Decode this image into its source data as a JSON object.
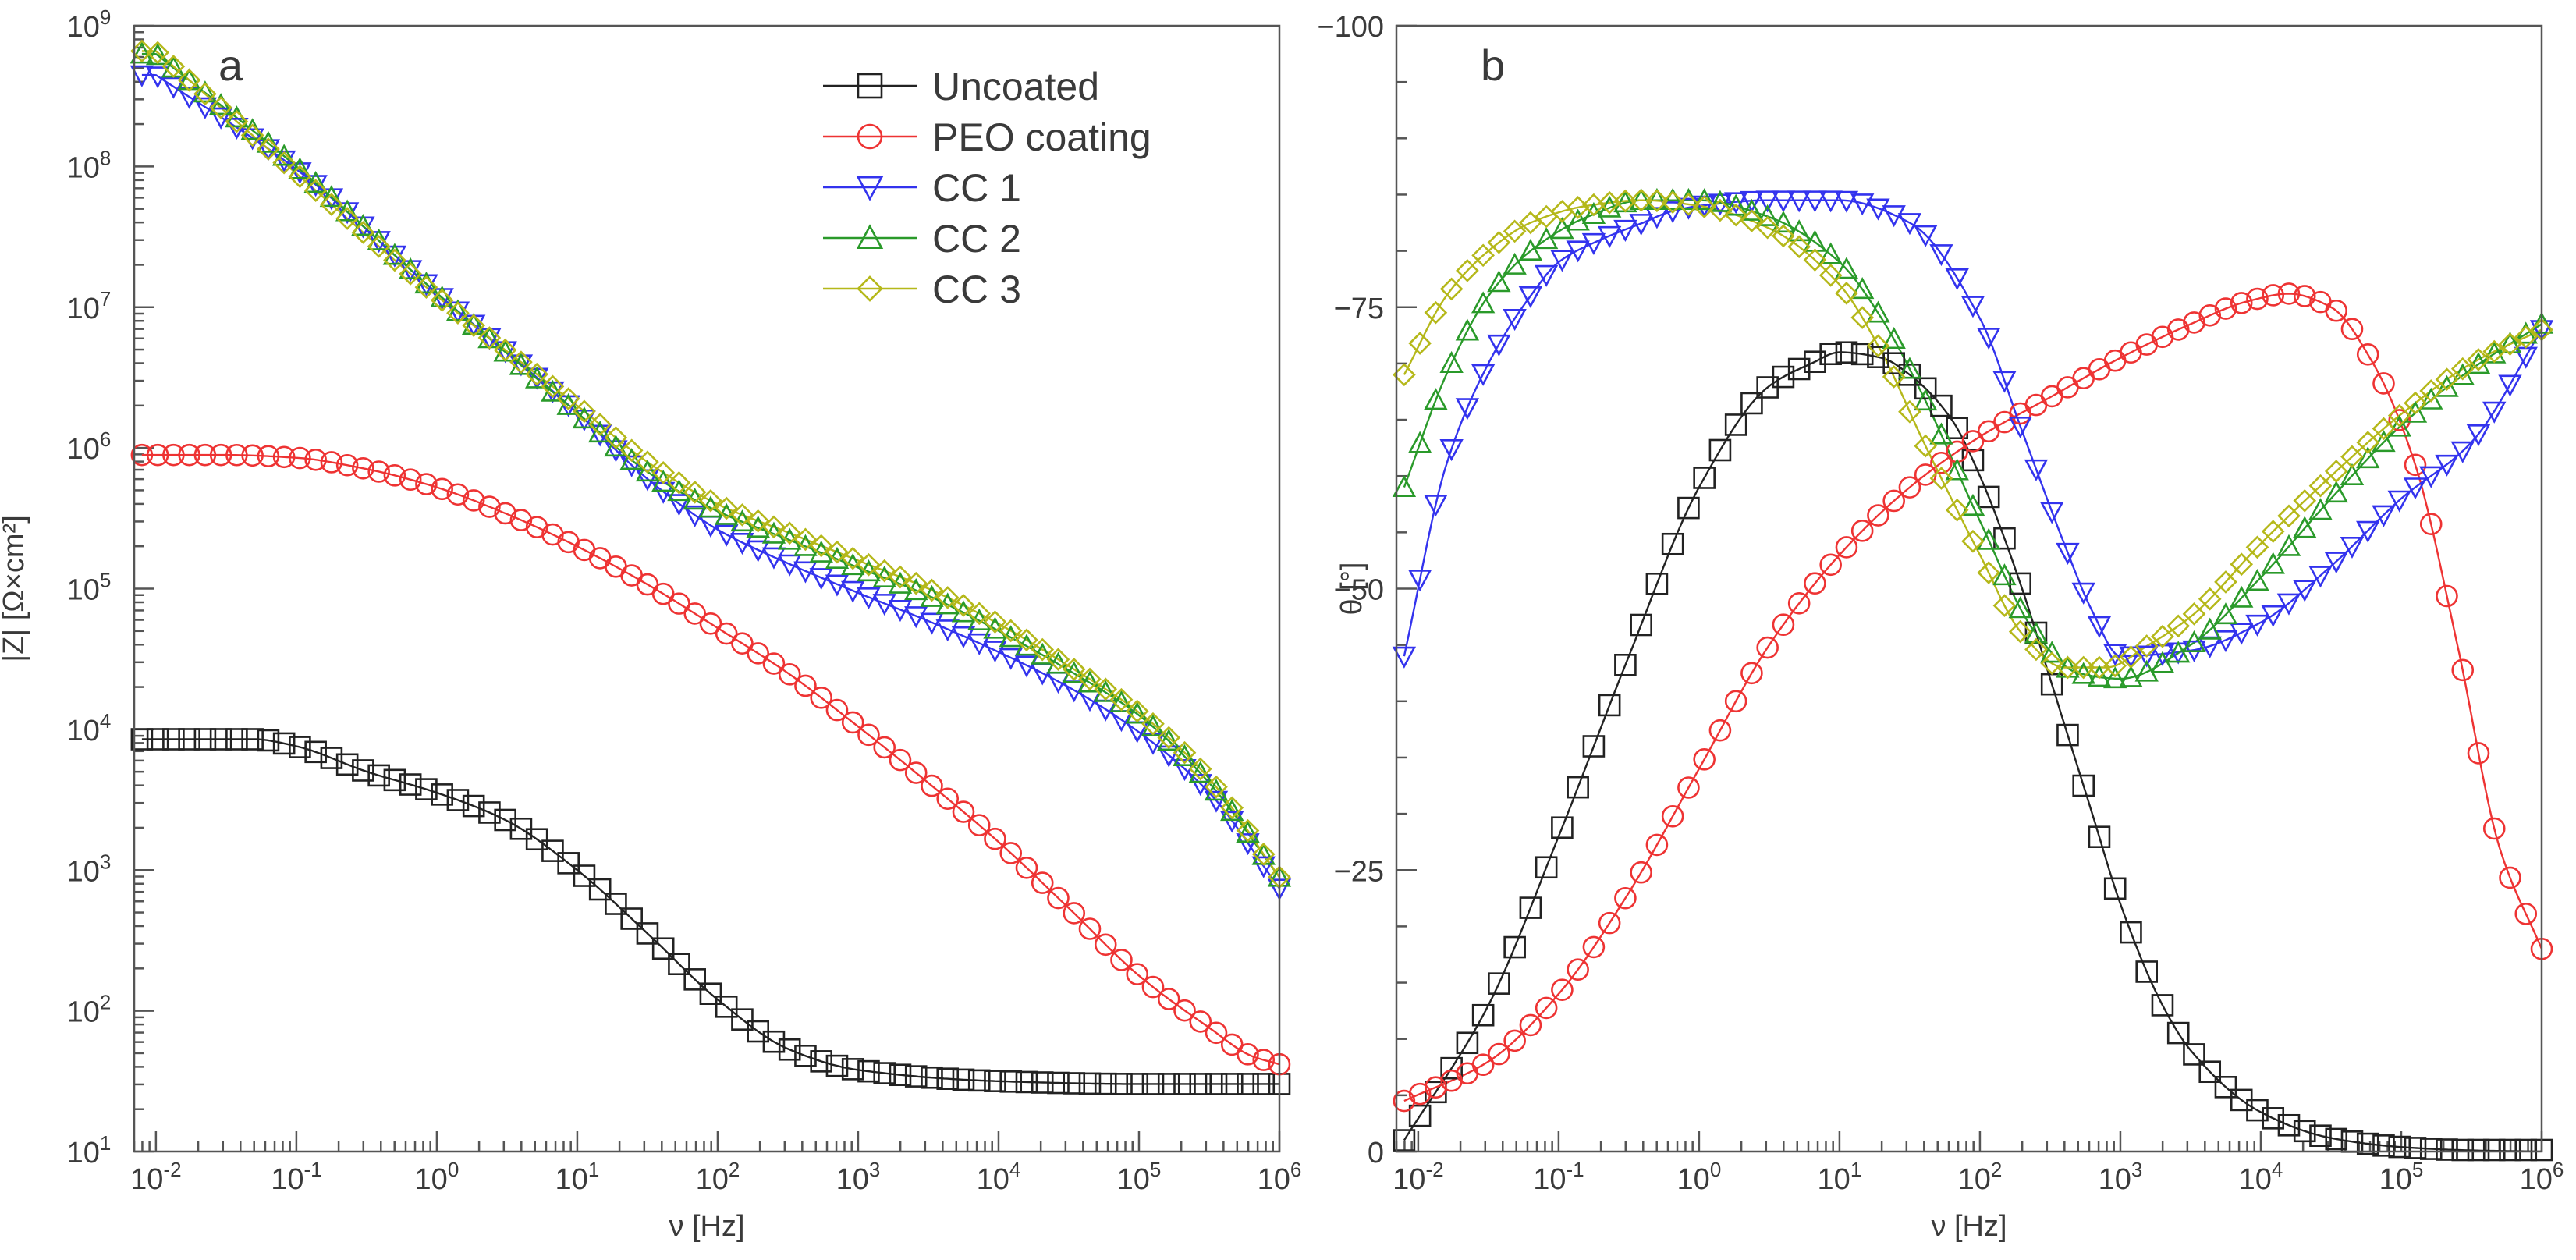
{
  "colors": {
    "uncoated": "#222222",
    "peo": "#ee3333",
    "cc1": "#3333ee",
    "cc2": "#2a9a2a",
    "cc3": "#b5b81a",
    "frame": "#555555"
  },
  "chart_data": [
    {
      "panel": "a",
      "type": "scatter",
      "xscale": "log",
      "yscale": "log",
      "xlabel": "ν [Hz]",
      "ylabel": "|Z| [Ω×cm²]",
      "xlim": [
        0.007,
        1000000
      ],
      "ylim": [
        10,
        1000000000
      ],
      "x_ticks": [
        {
          "base": "10",
          "exp": "-2"
        },
        {
          "base": "10",
          "exp": "-1"
        },
        {
          "base": "10",
          "exp": "0"
        },
        {
          "base": "10",
          "exp": "1"
        },
        {
          "base": "10",
          "exp": "2"
        },
        {
          "base": "10",
          "exp": "3"
        },
        {
          "base": "10",
          "exp": "4"
        },
        {
          "base": "10",
          "exp": "5"
        },
        {
          "base": "10",
          "exp": "6"
        }
      ],
      "y_ticks": [
        {
          "base": "10",
          "exp": "1"
        },
        {
          "base": "10",
          "exp": "2"
        },
        {
          "base": "10",
          "exp": "3"
        },
        {
          "base": "10",
          "exp": "4"
        },
        {
          "base": "10",
          "exp": "5"
        },
        {
          "base": "10",
          "exp": "6"
        },
        {
          "base": "10",
          "exp": "7"
        },
        {
          "base": "10",
          "exp": "8"
        },
        {
          "base": "10",
          "exp": "9"
        }
      ],
      "legend": {
        "position": "top-right",
        "entries": [
          {
            "label": "Uncoated",
            "series": "uncoated",
            "marker": "square"
          },
          {
            "label": "PEO coating",
            "series": "peo",
            "marker": "circle"
          },
          {
            "label": "CC 1",
            "series": "cc1",
            "marker": "triangle-down"
          },
          {
            "label": "CC 2",
            "series": "cc2",
            "marker": "triangle-up"
          },
          {
            "label": "CC 3",
            "series": "cc3",
            "marker": "diamond"
          }
        ]
      },
      "series": [
        {
          "key": "uncoated",
          "name": "Uncoated",
          "marker": "square",
          "x_log": [
            -2,
            -1.3,
            -1,
            -0.5,
            0,
            0.5,
            1,
            1.5,
            2,
            2.5,
            3,
            4,
            5,
            6
          ],
          "y_log": [
            3.93,
            3.93,
            3.88,
            3.7,
            3.55,
            3.35,
            3.0,
            2.55,
            2.08,
            1.73,
            1.58,
            1.5,
            1.48,
            1.48
          ]
        },
        {
          "key": "peo",
          "name": "PEO coating",
          "marker": "circle",
          "x_log": [
            -2,
            -1.5,
            -1,
            -0.5,
            0,
            0.5,
            1,
            1.5,
            2,
            2.5,
            3,
            3.5,
            4,
            4.5,
            5,
            5.5,
            5.8,
            6
          ],
          "y_log": [
            5.95,
            5.95,
            5.93,
            5.85,
            5.72,
            5.53,
            5.3,
            5.03,
            4.72,
            4.4,
            4.02,
            3.62,
            3.2,
            2.73,
            2.25,
            1.88,
            1.68,
            1.62
          ]
        },
        {
          "key": "cc1",
          "name": "CC 1",
          "marker": "triangle-down",
          "x_log": [
            -2,
            -1,
            0,
            1,
            1.5,
            2,
            2.5,
            3,
            3.5,
            4,
            4.5,
            5,
            5.5,
            6
          ],
          "y_log": [
            8.65,
            7.98,
            7.1,
            6.25,
            5.78,
            5.42,
            5.18,
            4.97,
            4.77,
            4.55,
            4.3,
            3.98,
            3.55,
            2.87
          ]
        },
        {
          "key": "cc2",
          "name": "CC 2",
          "marker": "triangle-up",
          "x_log": [
            -2,
            -1,
            0,
            1,
            1.5,
            2,
            2.5,
            3,
            3.5,
            4,
            4.5,
            5,
            5.5,
            6
          ],
          "y_log": [
            8.8,
            8.0,
            7.1,
            6.25,
            5.83,
            5.55,
            5.35,
            5.15,
            4.95,
            4.7,
            4.42,
            4.1,
            3.62,
            2.95
          ]
        },
        {
          "key": "cc3",
          "name": "CC 3",
          "marker": "diamond",
          "x_log": [
            -2,
            -1,
            0,
            1,
            1.5,
            2,
            2.5,
            3,
            3.5,
            4,
            4.5,
            5,
            5.5,
            6
          ],
          "y_log": [
            8.82,
            7.95,
            7.08,
            6.3,
            5.9,
            5.6,
            5.4,
            5.2,
            5.0,
            4.75,
            4.45,
            4.12,
            3.65,
            2.95
          ]
        }
      ]
    },
    {
      "panel": "b",
      "type": "scatter",
      "xscale": "log",
      "yscale": "linear",
      "xlabel": "ν [Hz]",
      "ylabel": "θ [°]",
      "xlim": [
        0.007,
        1000000
      ],
      "ylim": [
        0,
        -100
      ],
      "x_ticks": [
        {
          "base": "10",
          "exp": "-2"
        },
        {
          "base": "10",
          "exp": "-1"
        },
        {
          "base": "10",
          "exp": "0"
        },
        {
          "base": "10",
          "exp": "1"
        },
        {
          "base": "10",
          "exp": "2"
        },
        {
          "base": "10",
          "exp": "3"
        },
        {
          "base": "10",
          "exp": "4"
        },
        {
          "base": "10",
          "exp": "5"
        },
        {
          "base": "10",
          "exp": "6"
        }
      ],
      "y_ticks": [
        "0",
        "−25",
        "−50",
        "−75",
        "−100"
      ],
      "y_tick_values": [
        0,
        -25,
        -50,
        -75,
        -100
      ],
      "series": [
        {
          "key": "uncoated",
          "name": "Uncoated",
          "marker": "square",
          "x_log": [
            -2.1,
            -1.5,
            -1,
            -0.5,
            0,
            0.5,
            0.8,
            1,
            1.3,
            1.5,
            1.8,
            2,
            2.3,
            2.5,
            2.8,
            3,
            3.3,
            3.5,
            4,
            4.5,
            5,
            5.5,
            6
          ],
          "y": [
            -1,
            -13,
            -28,
            -44,
            -59,
            -68,
            -70,
            -71,
            -70.5,
            -69,
            -65,
            -60,
            -50,
            -42,
            -30,
            -22,
            -13,
            -9,
            -3.5,
            -1.2,
            -0.4,
            -0.1,
            0
          ]
        },
        {
          "key": "peo",
          "name": "PEO coating",
          "marker": "circle",
          "x_log": [
            -2.1,
            -1.5,
            -1,
            -0.5,
            0,
            0.5,
            1,
            1.5,
            2,
            2.5,
            3,
            3.5,
            3.9,
            4.2,
            4.5,
            4.8,
            5.1,
            5.4,
            5.7,
            6
          ],
          "y": [
            -4.5,
            -8,
            -14,
            -23,
            -34,
            -45,
            -53,
            -59,
            -63.5,
            -67,
            -70.5,
            -73.5,
            -75.5,
            -76.2,
            -75,
            -70,
            -61,
            -45,
            -27,
            -18
          ]
        },
        {
          "key": "cc1",
          "name": "CC 1",
          "marker": "triangle-down",
          "x_log": [
            -2.1,
            -1.8,
            -1.5,
            -1.2,
            -1,
            -0.7,
            -0.4,
            -0.2,
            0,
            0.5,
            1,
            1.5,
            2,
            2.3,
            2.6,
            2.8,
            3,
            3.5,
            4,
            4.5,
            5,
            5.5,
            6
          ],
          "y": [
            -44,
            -61,
            -70,
            -76,
            -79,
            -81,
            -82.5,
            -83.5,
            -84,
            -84.5,
            -84.5,
            -82.5,
            -74,
            -64,
            -54,
            -48,
            -44,
            -44.5,
            -47,
            -52,
            -58,
            -63,
            -73
          ]
        },
        {
          "key": "cc2",
          "name": "CC 2",
          "marker": "triangle-up",
          "x_log": [
            -2.1,
            -1.8,
            -1.5,
            -1.2,
            -0.8,
            -0.4,
            0,
            0.5,
            1,
            1.3,
            1.6,
            2,
            2.4,
            2.7,
            3,
            3.5,
            4,
            4.5,
            5,
            5.5,
            6
          ],
          "y": [
            -59,
            -69,
            -76,
            -80,
            -83,
            -84.5,
            -84.5,
            -83,
            -79,
            -74,
            -67,
            -56,
            -46,
            -42.5,
            -42,
            -45,
            -51,
            -58,
            -64.5,
            -69.5,
            -73.5
          ]
        },
        {
          "key": "cc3",
          "name": "CC 3",
          "marker": "diamond",
          "x_log": [
            -2.1,
            -1.8,
            -1.5,
            -1.2,
            -0.8,
            -0.4,
            0,
            0.5,
            1,
            1.3,
            1.6,
            2,
            2.3,
            2.6,
            2.9,
            3.2,
            3.5,
            4,
            4.5,
            5,
            5.5,
            6
          ],
          "y": [
            -69,
            -76,
            -80,
            -82.5,
            -84,
            -84.5,
            -84,
            -82,
            -77,
            -71,
            -63,
            -53,
            -46,
            -43,
            -43,
            -45,
            -47.5,
            -54,
            -60,
            -65.5,
            -70,
            -73
          ]
        }
      ]
    }
  ]
}
